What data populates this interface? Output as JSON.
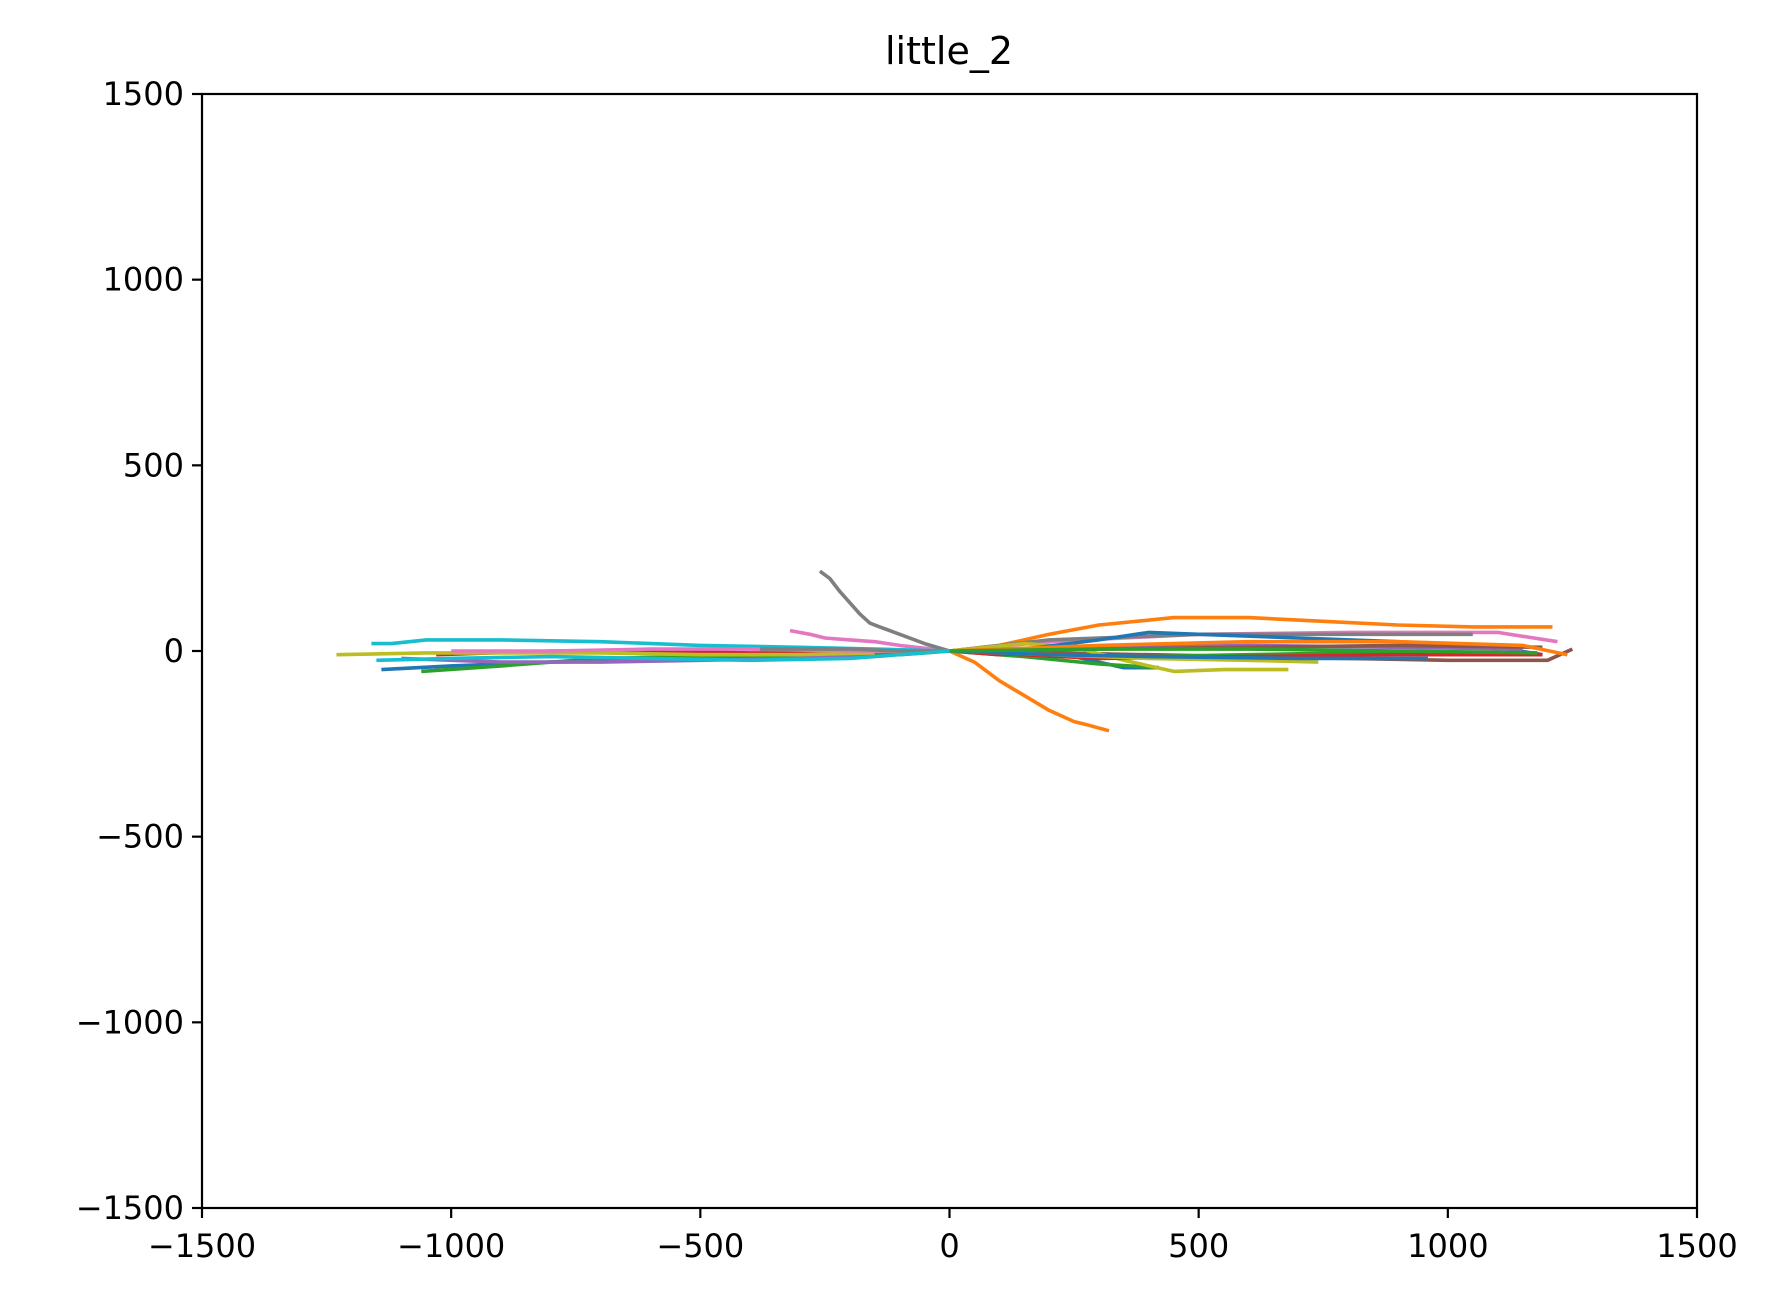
{
  "chart_data": {
    "type": "line",
    "title": "little_2",
    "xlabel": "",
    "ylabel": "",
    "xlim": [
      -1500,
      1500
    ],
    "ylim": [
      -1500,
      1500
    ],
    "xticks": [
      -1500,
      -1000,
      -500,
      0,
      500,
      1000,
      1500
    ],
    "yticks": [
      -1500,
      -1000,
      -500,
      0,
      500,
      1000,
      1500
    ],
    "xtick_labels": [
      "−1500",
      "−1000",
      "−500",
      "0",
      "500",
      "1000",
      "1500"
    ],
    "ytick_labels": [
      "−1500",
      "−1000",
      "−500",
      "0",
      "500",
      "1000",
      "1500"
    ],
    "grid": false,
    "legend": "none",
    "series": [
      {
        "color": "#1f77b4",
        "x": [
          -1140,
          -1000,
          -800,
          -600,
          -400,
          -200,
          0,
          200,
          350,
          420
        ],
        "y": [
          -50,
          -40,
          -30,
          -25,
          -20,
          -10,
          0,
          0,
          -45,
          -45
        ]
      },
      {
        "color": "#ff7f0e",
        "x": [
          0,
          100,
          200,
          300,
          450,
          600,
          750,
          900,
          1050,
          1210
        ],
        "y": [
          0,
          15,
          45,
          70,
          90,
          90,
          80,
          70,
          65,
          65
        ]
      },
      {
        "color": "#2ca02c",
        "x": [
          -1060,
          -900,
          -700,
          -500,
          -300,
          -150,
          0,
          150,
          300,
          420
        ],
        "y": [
          -55,
          -40,
          -20,
          -15,
          -10,
          -5,
          0,
          -15,
          -35,
          -45
        ]
      },
      {
        "color": "#d62728",
        "x": [
          -1030,
          -800,
          -600,
          -400,
          -200,
          0,
          100,
          150
        ],
        "y": [
          -10,
          0,
          0,
          -5,
          -5,
          0,
          -10,
          -5
        ]
      },
      {
        "color": "#9467bd",
        "x": [
          -1100,
          -900,
          -700,
          -500,
          -300,
          -100,
          0
        ],
        "y": [
          -20,
          -30,
          -30,
          -25,
          -20,
          -5,
          0
        ]
      },
      {
        "color": "#8c564b",
        "x": [
          0,
          200,
          400,
          600,
          800,
          1000,
          1200,
          1250
        ],
        "y": [
          0,
          -5,
          -10,
          -15,
          -20,
          -25,
          -25,
          5
        ]
      },
      {
        "color": "#e377c2",
        "x": [
          -320,
          -280,
          -250,
          -200,
          -150,
          -100,
          0,
          200,
          500,
          800,
          1100,
          1220
        ],
        "y": [
          55,
          45,
          35,
          30,
          25,
          15,
          0,
          25,
          45,
          50,
          50,
          25
        ]
      },
      {
        "color": "#7f7f7f",
        "x": [
          -260,
          -240,
          -220,
          -200,
          -180,
          -160,
          -140,
          -100,
          -50,
          0,
          200,
          500,
          800,
          1050
        ],
        "y": [
          215,
          195,
          160,
          130,
          100,
          75,
          65,
          45,
          20,
          0,
          30,
          45,
          45,
          45
        ]
      },
      {
        "color": "#bcbd22",
        "x": [
          -1230,
          -1050,
          -900,
          -700,
          -500,
          -300,
          0,
          150,
          250,
          350,
          450,
          550,
          680
        ],
        "y": [
          -10,
          -5,
          -5,
          -5,
          -10,
          -10,
          0,
          20,
          10,
          -25,
          -55,
          -50,
          -50
        ]
      },
      {
        "color": "#17becf",
        "x": [
          -1160,
          -1120,
          -1050,
          -900,
          -700,
          -500,
          -300,
          -150,
          0
        ],
        "y": [
          20,
          20,
          30,
          30,
          25,
          15,
          10,
          5,
          0
        ]
      },
      {
        "color": "#1f77b4",
        "x": [
          0,
          150,
          300,
          400,
          500,
          700,
          900,
          1100,
          1190
        ],
        "y": [
          0,
          5,
          30,
          50,
          45,
          35,
          25,
          10,
          -10
        ]
      },
      {
        "color": "#ff7f0e",
        "x": [
          0,
          50,
          100,
          150,
          200,
          250,
          280,
          320
        ],
        "y": [
          0,
          -30,
          -80,
          -120,
          -160,
          -190,
          -200,
          -215
        ]
      },
      {
        "color": "#2ca02c",
        "x": [
          -150,
          -100,
          -50,
          0,
          200,
          400,
          600,
          800,
          1000,
          1150
        ],
        "y": [
          -10,
          -10,
          -5,
          0,
          -10,
          -15,
          -10,
          -5,
          -5,
          -10
        ]
      },
      {
        "color": "#d62728",
        "x": [
          0,
          300,
          600,
          900,
          1190
        ],
        "y": [
          0,
          -20,
          -15,
          -10,
          -10
        ]
      },
      {
        "color": "#9467bd",
        "x": [
          0,
          300,
          600,
          900,
          1150
        ],
        "y": [
          0,
          10,
          15,
          10,
          5
        ]
      },
      {
        "color": "#8c564b",
        "x": [
          0,
          300,
          600,
          900,
          1190
        ],
        "y": [
          0,
          5,
          10,
          15,
          10
        ]
      },
      {
        "color": "#e377c2",
        "x": [
          -1000,
          -800,
          -600,
          -400,
          -200,
          0
        ],
        "y": [
          0,
          0,
          5,
          5,
          0,
          0
        ]
      },
      {
        "color": "#7f7f7f",
        "x": [
          -380,
          -300,
          -200,
          -100,
          0
        ],
        "y": [
          5,
          5,
          5,
          0,
          0
        ]
      },
      {
        "color": "#bcbd22",
        "x": [
          0,
          200,
          400,
          600,
          740
        ],
        "y": [
          0,
          -10,
          -20,
          -25,
          -30
        ]
      },
      {
        "color": "#17becf",
        "x": [
          -1150,
          -1000,
          -800,
          -600,
          -400,
          -200,
          0
        ],
        "y": [
          -25,
          -20,
          -15,
          -20,
          -25,
          -20,
          0
        ]
      },
      {
        "color": "#1f77b4",
        "x": [
          0,
          200,
          400,
          700,
          960
        ],
        "y": [
          0,
          -10,
          -15,
          -20,
          -20
        ]
      },
      {
        "color": "#ff7f0e",
        "x": [
          0,
          300,
          600,
          900,
          1150,
          1240
        ],
        "y": [
          0,
          15,
          25,
          25,
          15,
          -10
        ]
      },
      {
        "color": "#2ca02c",
        "x": [
          0,
          300,
          600,
          900,
          1180
        ],
        "y": [
          0,
          5,
          5,
          0,
          -5
        ]
      }
    ]
  }
}
